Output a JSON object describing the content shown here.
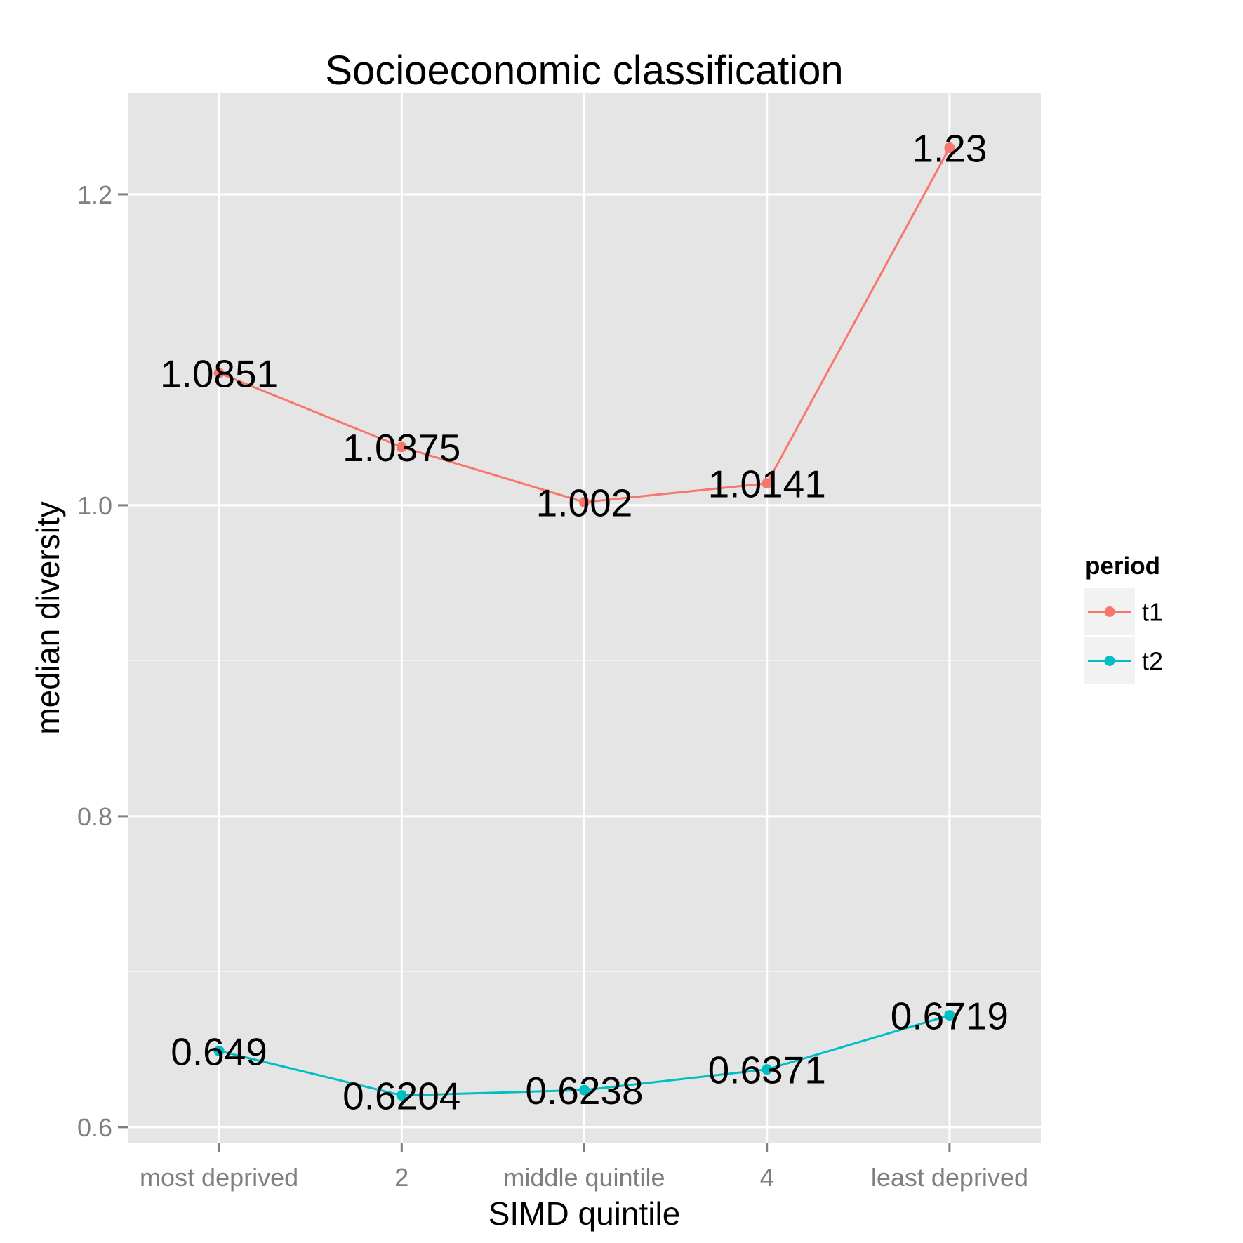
{
  "chart_data": {
    "type": "line",
    "title": "Socioeconomic classification",
    "xlabel": "SIMD quintile",
    "ylabel": "median diversity",
    "categories": [
      "most deprived",
      "2",
      "middle quintile",
      "4",
      "least deprived"
    ],
    "ylim": [
      0.59,
      1.265
    ],
    "yticks": [
      0.6,
      0.8,
      1.0,
      1.2
    ],
    "ytick_labels": [
      "0.6",
      "0.8",
      "1.0",
      "1.2"
    ],
    "grid": true,
    "background": "#e5e5e5",
    "legend": {
      "title": "period",
      "position": "right"
    },
    "series": [
      {
        "name": "t1",
        "color": "#f8766d",
        "values": [
          1.0851,
          1.0375,
          1.002,
          1.0141,
          1.23
        ],
        "labels": [
          "1.0851",
          "1.0375",
          "1.002",
          "1.0141",
          "1.23"
        ]
      },
      {
        "name": "t2",
        "color": "#00bfc4",
        "values": [
          0.649,
          0.6204,
          0.6238,
          0.6371,
          0.6719
        ],
        "labels": [
          "0.649",
          "0.6204",
          "0.6238",
          "0.6371",
          "0.6719"
        ]
      }
    ]
  }
}
